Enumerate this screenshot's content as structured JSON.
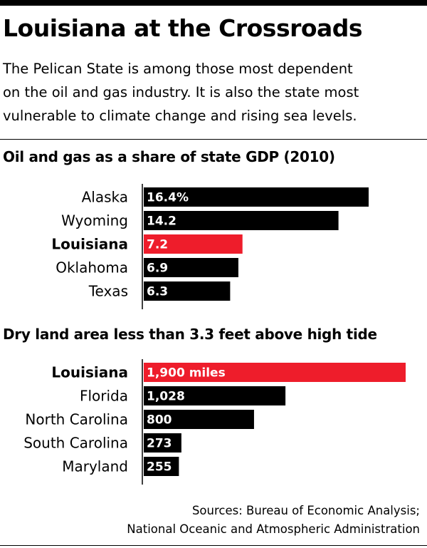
{
  "header": {
    "title": "Louisiana at the Crossroads",
    "subtitle_lines": [
      "The Pelican State is among those most dependent",
      "on the oil and gas industry. It is also the state most",
      "vulnerable to climate change and rising sea levels."
    ]
  },
  "colors": {
    "highlight": "#ee1d2b",
    "bar": "#000000",
    "bar_text": "#ffffff"
  },
  "chart_data": [
    {
      "type": "bar",
      "orientation": "horizontal",
      "title": "Oil and gas as a share of state GDP (2010)",
      "categories": [
        "Alaska",
        "Wyoming",
        "Louisiana",
        "Oklahoma",
        "Texas"
      ],
      "values": [
        16.4,
        14.2,
        7.2,
        6.9,
        6.3
      ],
      "value_labels": [
        "16.4%",
        "14.2",
        "7.2",
        "6.9",
        "6.3"
      ],
      "highlight": "Louisiana",
      "xlim": [
        0,
        16.4
      ],
      "grid": false
    },
    {
      "type": "bar",
      "orientation": "horizontal",
      "title": "Dry land area less than 3.3 feet above high tide",
      "categories": [
        "Louisiana",
        "Florida",
        "North Carolina",
        "South Carolina",
        "Maryland"
      ],
      "values": [
        1900,
        1028,
        800,
        273,
        255
      ],
      "value_labels": [
        "1,900 miles",
        "1,028",
        "800",
        "273",
        "255"
      ],
      "highlight": "Louisiana",
      "xlim": [
        0,
        1900
      ],
      "grid": false
    }
  ],
  "footer": {
    "source_lines": [
      "Sources: Bureau of Economic Analysis;",
      "National Oceanic and Atmospheric Administration"
    ]
  }
}
